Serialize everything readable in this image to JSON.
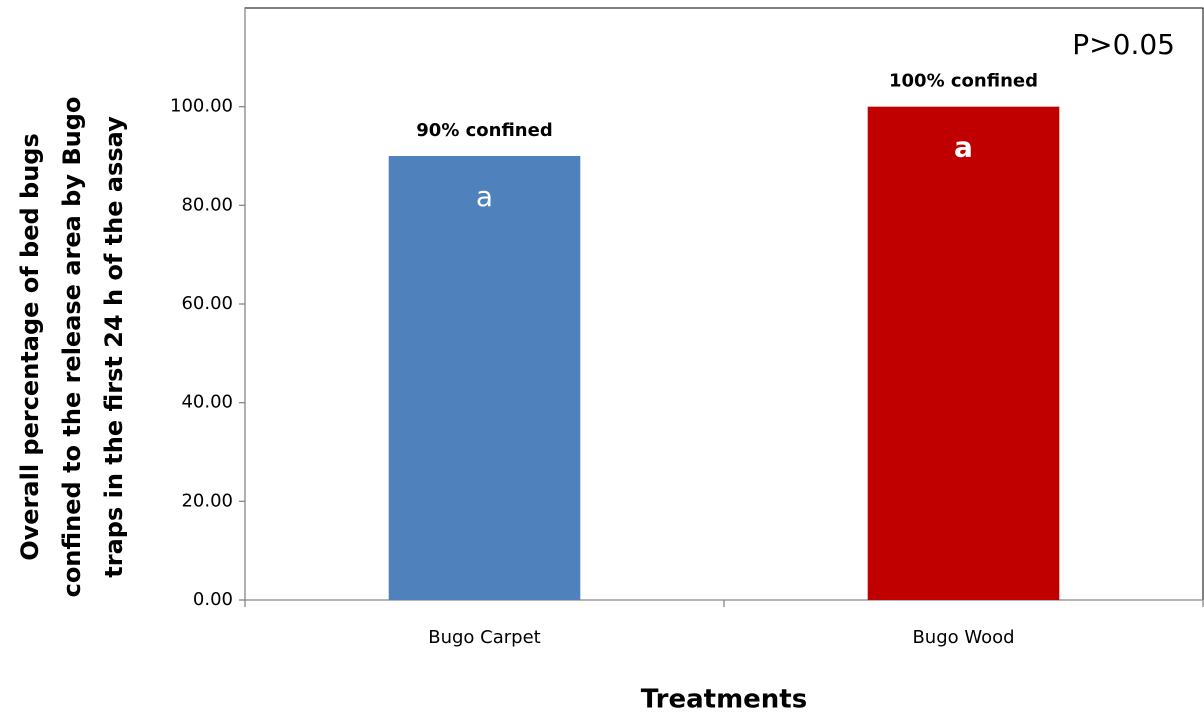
{
  "chart_data": {
    "type": "bar",
    "categories": [
      "Bugo Carpet",
      "Bugo Wood"
    ],
    "values": [
      90,
      100
    ],
    "value_labels": [
      "90% confined",
      "100% confined"
    ],
    "colors": [
      "#4f81bd",
      "#c00000"
    ],
    "bar_letters": [
      "a",
      "a"
    ],
    "annotation": "P>0.05",
    "xlabel": "Treatments",
    "ylabel": [
      "Overall percentage of bed bugs",
      "confined to the release area by Bugo",
      "traps in the first 24 h of the assay"
    ],
    "ylim": [
      0,
      120
    ],
    "yticks": [
      {
        "value": 0,
        "label": "0.00"
      },
      {
        "value": 20,
        "label": "20.00"
      },
      {
        "value": 40,
        "label": "40.00"
      },
      {
        "value": 60,
        "label": "60.00"
      },
      {
        "value": 80,
        "label": "80.00"
      },
      {
        "value": 100,
        "label": "100.00"
      }
    ],
    "grid": false
  }
}
